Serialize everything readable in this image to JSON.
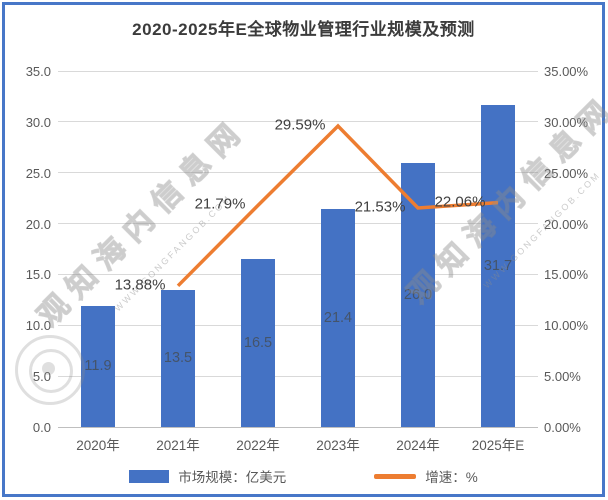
{
  "title": "2020-2025年E全球物业管理行业规模及预测",
  "chart_data": {
    "type": "combo-bar-line",
    "title": "2020-2025年E全球物业管理行业规模及预测",
    "categories": [
      "2020年",
      "2021年",
      "2022年",
      "2023年",
      "2024年",
      "2025年E"
    ],
    "series": [
      {
        "name": "市场规模",
        "unit": "亿美元",
        "chart": "bar",
        "axis": "left",
        "color": "#4472C4",
        "values": [
          11.9,
          13.5,
          16.5,
          21.4,
          26.0,
          31.7
        ],
        "data_labels": [
          "11.9",
          "13.5",
          "16.5",
          "21.4",
          "26.0",
          "31.7"
        ]
      },
      {
        "name": "增速",
        "unit": "%",
        "chart": "line",
        "axis": "right",
        "color": "#ED7D31",
        "values": [
          null,
          13.88,
          21.79,
          29.59,
          21.53,
          22.06
        ],
        "data_labels": [
          "",
          "13.88%",
          "21.79%",
          "29.59%",
          "21.53%",
          "22.06%"
        ]
      }
    ],
    "left_axis": {
      "min": 0,
      "max": 35,
      "ticks": [
        "0.0",
        "5.0",
        "10.0",
        "15.0",
        "20.0",
        "25.0",
        "30.0",
        "35.0"
      ],
      "tick_values": [
        0,
        5,
        10,
        15,
        20,
        25,
        30,
        35
      ]
    },
    "right_axis": {
      "min": 0,
      "max": 35,
      "ticks": [
        "0.00%",
        "5.00%",
        "10.00%",
        "15.00%",
        "20.00%",
        "25.00%",
        "30.00%",
        "35.00%"
      ],
      "tick_values": [
        0,
        5,
        10,
        15,
        20,
        25,
        30,
        35
      ]
    },
    "legend": [
      {
        "label": "市场规模：亿美元",
        "marker": "bar",
        "color": "#4472C4"
      },
      {
        "label": "增速：%",
        "marker": "line",
        "color": "#ED7D31"
      }
    ],
    "grid": true,
    "legend_position": "bottom"
  },
  "watermark": {
    "text": "观知海内信息网",
    "url": "WWW.GONGFANGOB.COM"
  },
  "colors": {
    "bar": "#4472C4",
    "line": "#ED7D31",
    "border": "#4777C8",
    "grid": "#D9D9D9",
    "axtext": "#595959",
    "barlabel": "#44546A",
    "pctlabel": "#404040",
    "title": "#3B3B3B"
  }
}
